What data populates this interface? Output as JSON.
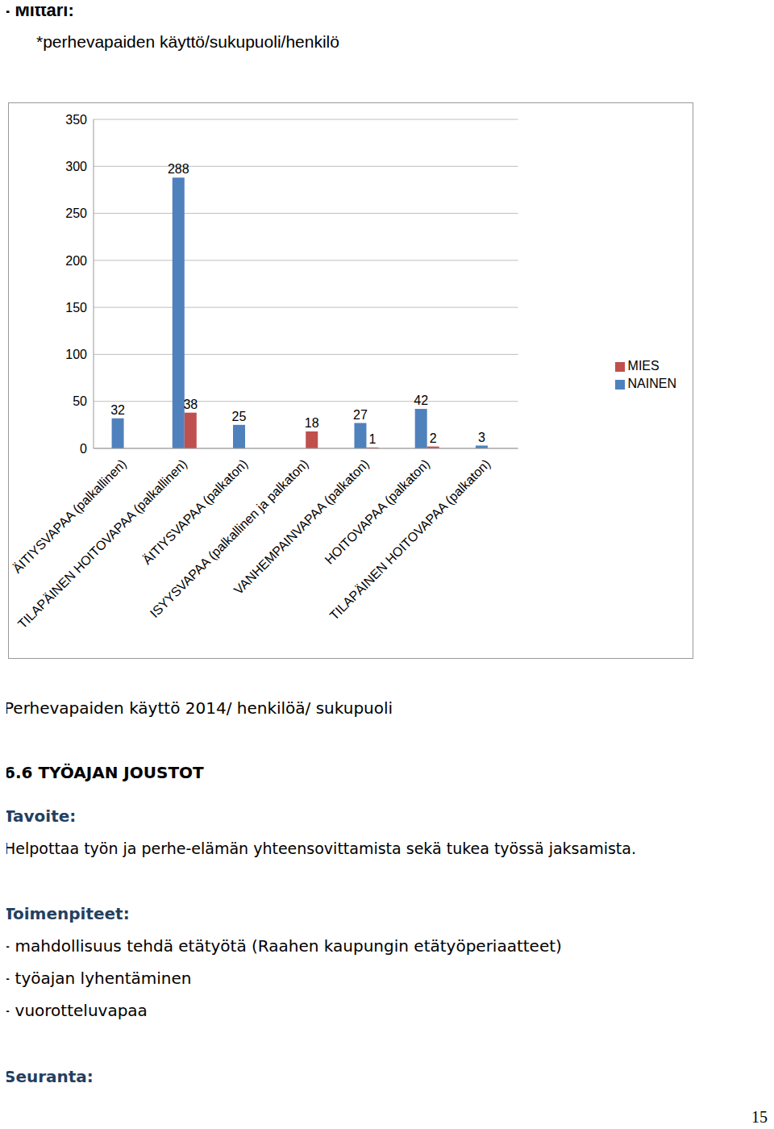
{
  "header": {
    "label": "- Mittari:",
    "metric": "*perhevapaiden käyttö/sukupuoli/henkilö"
  },
  "chart_data": {
    "type": "bar",
    "categories": [
      "ÄITIYSVAPAA (palkallinen)",
      "TILAPÄINEN HOITOVAPAA (palkallinen)",
      "ÄITIYSVAPAA (palkaton)",
      "ISYYSVAPAA (palkallinen ja palkaton)",
      "VANHEMPAINVAPAA (palkaton)",
      "HOITOVAPAA (palkaton)",
      "TILAPÄINEN HOITOVAPAA (palkaton)"
    ],
    "series": [
      {
        "name": "NAINEN",
        "color": "#4f81bd",
        "values": [
          32,
          288,
          25,
          0,
          27,
          42,
          3
        ]
      },
      {
        "name": "MIES",
        "color": "#c0504d",
        "values": [
          0,
          38,
          0,
          18,
          1,
          2,
          0
        ]
      }
    ],
    "ylim": [
      0,
      350
    ],
    "yticks": [
      0,
      50,
      100,
      150,
      200,
      250,
      300,
      350
    ],
    "grid": true,
    "legend": "right",
    "data_labels": true
  },
  "caption": "Perhevapaiden käyttö 2014/ henkilöä/ sukupuoli",
  "section": {
    "heading": "6.6 TYÖAJAN JOUSTOT",
    "goal_label": "Tavoite:",
    "goal": "Helpottaa työn ja perhe-elämän yhteensovittamista sekä tukea työssä jaksamista.",
    "measures_label": "Toimenpiteet:",
    "measures": [
      "- mahdollisuus tehdä etätyötä (Raahen kaupungin etätyöperiaatteet)",
      "- työajan lyhentäminen",
      "- vuorotteluvapaa"
    ],
    "followup_label": "Seuranta:"
  },
  "page_number": 15
}
